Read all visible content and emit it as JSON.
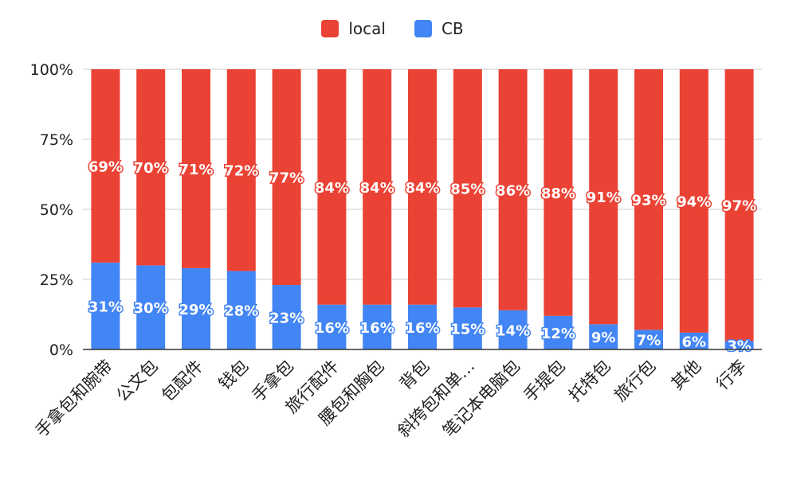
{
  "colors": {
    "local": "#ea4335",
    "cb": "#4285f4",
    "grid": "#cccccc",
    "axis": "#333333"
  },
  "legend": [
    {
      "name": "local",
      "color": "#ea4335"
    },
    {
      "name": "CB",
      "color": "#4285f4"
    }
  ],
  "chart_data": {
    "type": "bar",
    "stacked": "percent",
    "legend_position": "top",
    "grid": true,
    "ylim": [
      0,
      100
    ],
    "y_ticks": [
      "0%",
      "25%",
      "50%",
      "75%",
      "100%"
    ],
    "categories": [
      "手拿包和腕带",
      "公文包",
      "包配件",
      "钱包",
      "手拿包",
      "旅行配件",
      "腰包和胸包",
      "背包",
      "斜挎包和单…",
      "笔记本电脑包",
      "手提包",
      "托特包",
      "旅行包",
      "其他",
      "行李"
    ],
    "series": [
      {
        "name": "CB",
        "values": [
          31,
          30,
          29,
          28,
          23,
          16,
          16,
          16,
          15,
          14,
          12,
          9,
          7,
          6,
          3
        ]
      },
      {
        "name": "local",
        "values": [
          69,
          70,
          71,
          72,
          77,
          84,
          84,
          84,
          85,
          86,
          88,
          91,
          93,
          94,
          97
        ]
      }
    ],
    "value_labels": {
      "CB": [
        "31%",
        "30%",
        "29%",
        "28%",
        "23%",
        "16%",
        "16%",
        "16%",
        "15%",
        "14%",
        "12%",
        "9%",
        "7%",
        "6%",
        "3%"
      ],
      "local": [
        "69%",
        "70%",
        "71%",
        "72%",
        "77%",
        "84%",
        "84%",
        "84%",
        "85%",
        "86%",
        "88%",
        "91%",
        "93%",
        "94%",
        "97%"
      ]
    }
  }
}
